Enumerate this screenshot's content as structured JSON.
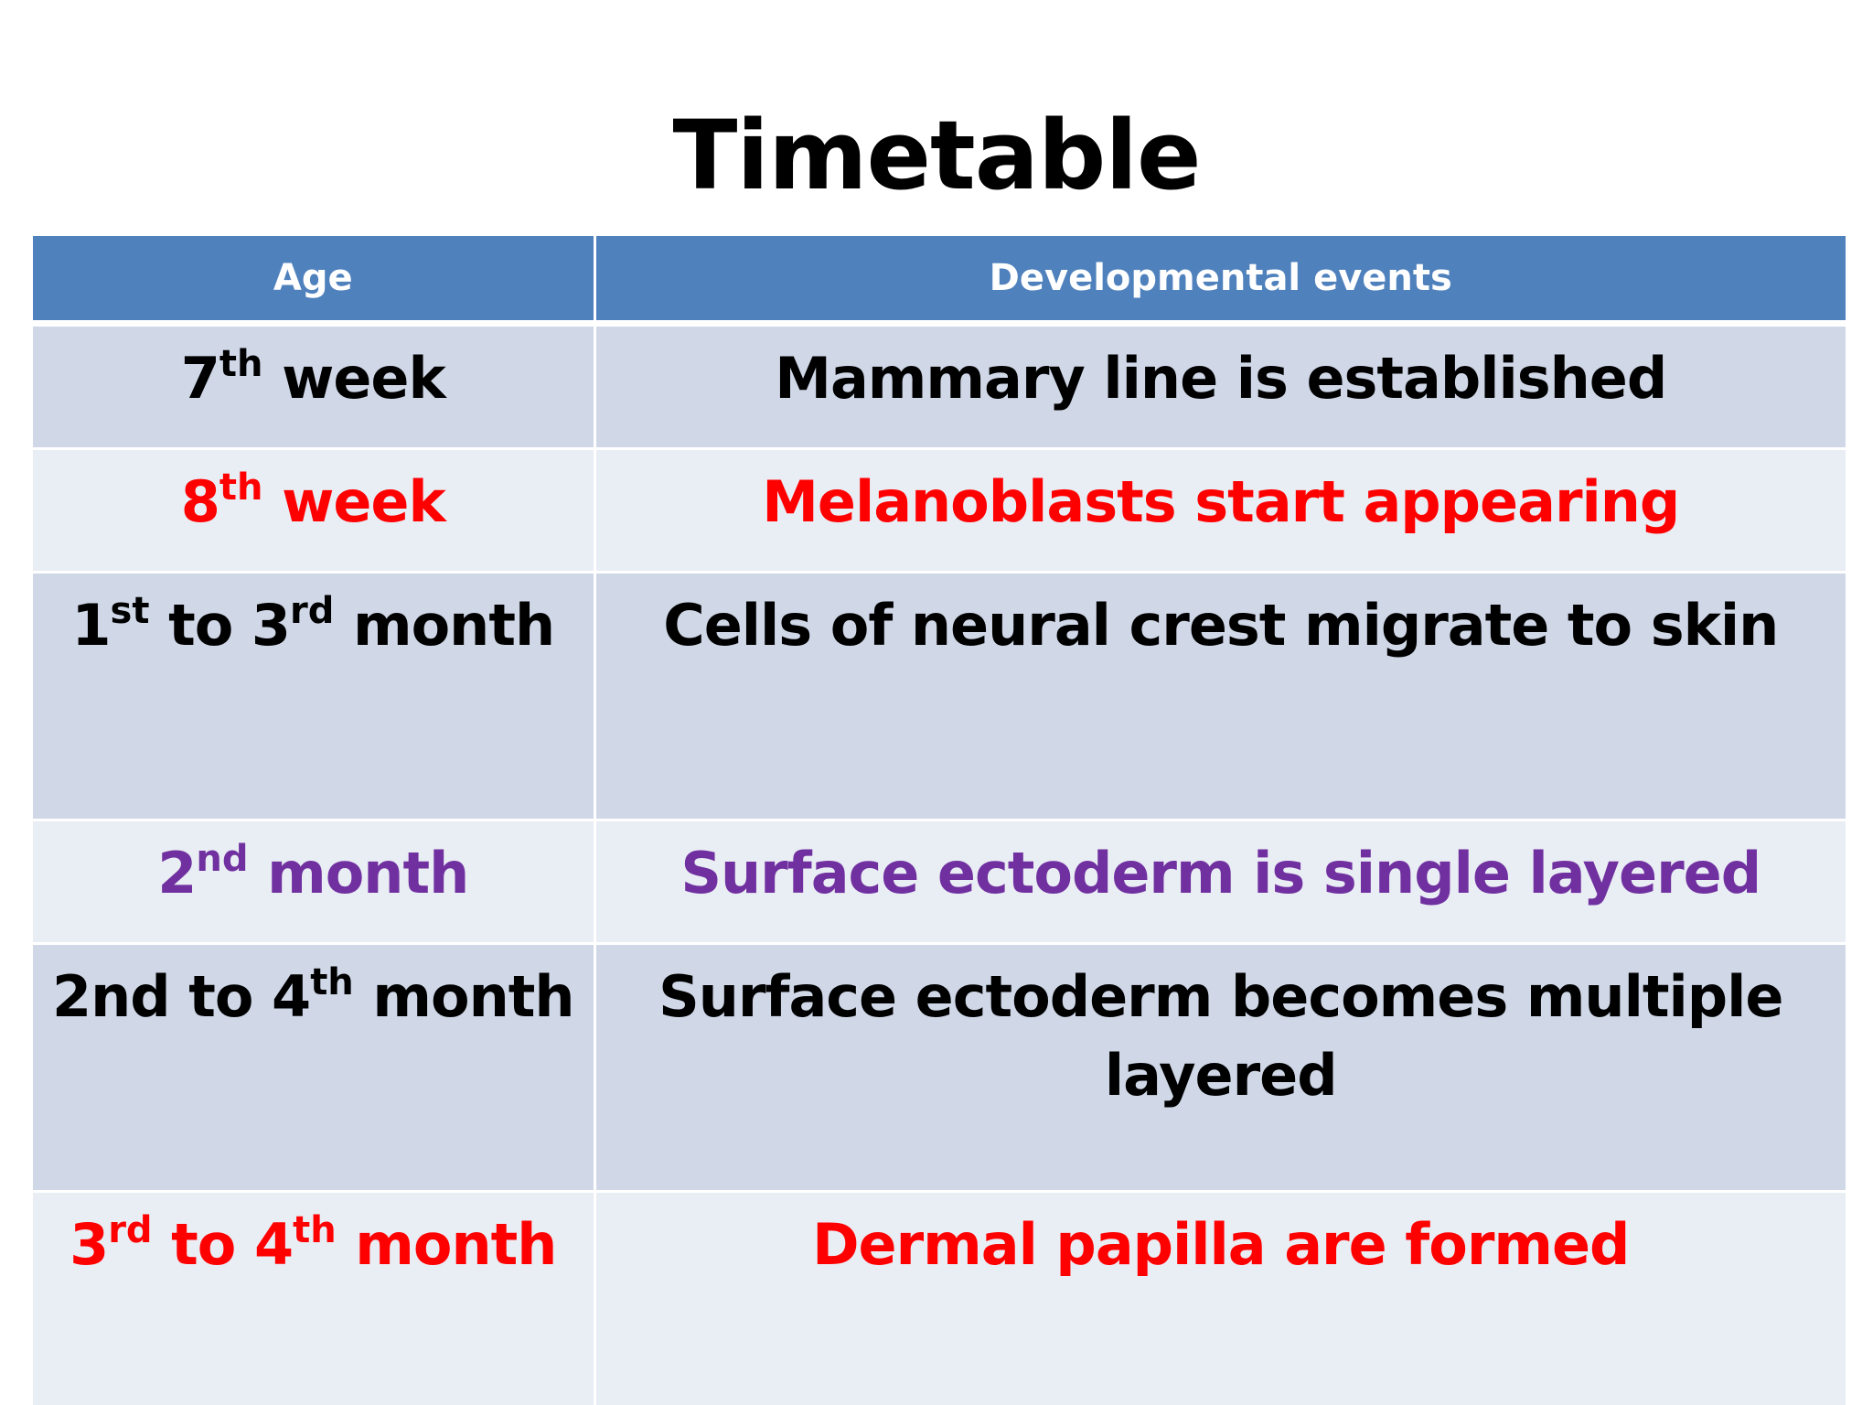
{
  "slide": {
    "title": "Timetable"
  },
  "colors": {
    "header_bg": "#4f81bd",
    "row_dark": "#d0d8e8",
    "row_light": "#e9edf4",
    "black": "#000000",
    "red": "#ff0000",
    "purple": "#7030a0"
  },
  "table": {
    "headers": {
      "age": "Age",
      "events": "Developmental events"
    },
    "rows": [
      {
        "age": {
          "a": "7",
          "a_sup": "th",
          "b": " week",
          "b_sup": "",
          "c": ""
        },
        "event": "Mammary line is established",
        "color": "black"
      },
      {
        "age": {
          "a": "8",
          "a_sup": "th",
          "b": " week",
          "b_sup": "",
          "c": ""
        },
        "event": "Melanoblasts start appearing",
        "color": "red"
      },
      {
        "age": {
          "a": "1",
          "a_sup": "st",
          "b": " to 3",
          "b_sup": "rd",
          "c": " month"
        },
        "event": "Cells of neural crest migrate to skin",
        "color": "black"
      },
      {
        "age": {
          "a": "2",
          "a_sup": "nd",
          "b": " month",
          "b_sup": "",
          "c": ""
        },
        "event": "Surface ectoderm is single layered",
        "color": "purple"
      },
      {
        "age": {
          "a": "2nd to 4",
          "a_sup": "th",
          "b": " month",
          "b_sup": "",
          "c": ""
        },
        "event": "Surface ectoderm becomes multiple layered",
        "color": "black"
      },
      {
        "age": {
          "a": "3",
          "a_sup": "rd",
          "b": " to 4",
          "b_sup": "th",
          "c": " month"
        },
        "event": "Dermal papilla are formed",
        "color": "red"
      }
    ]
  }
}
